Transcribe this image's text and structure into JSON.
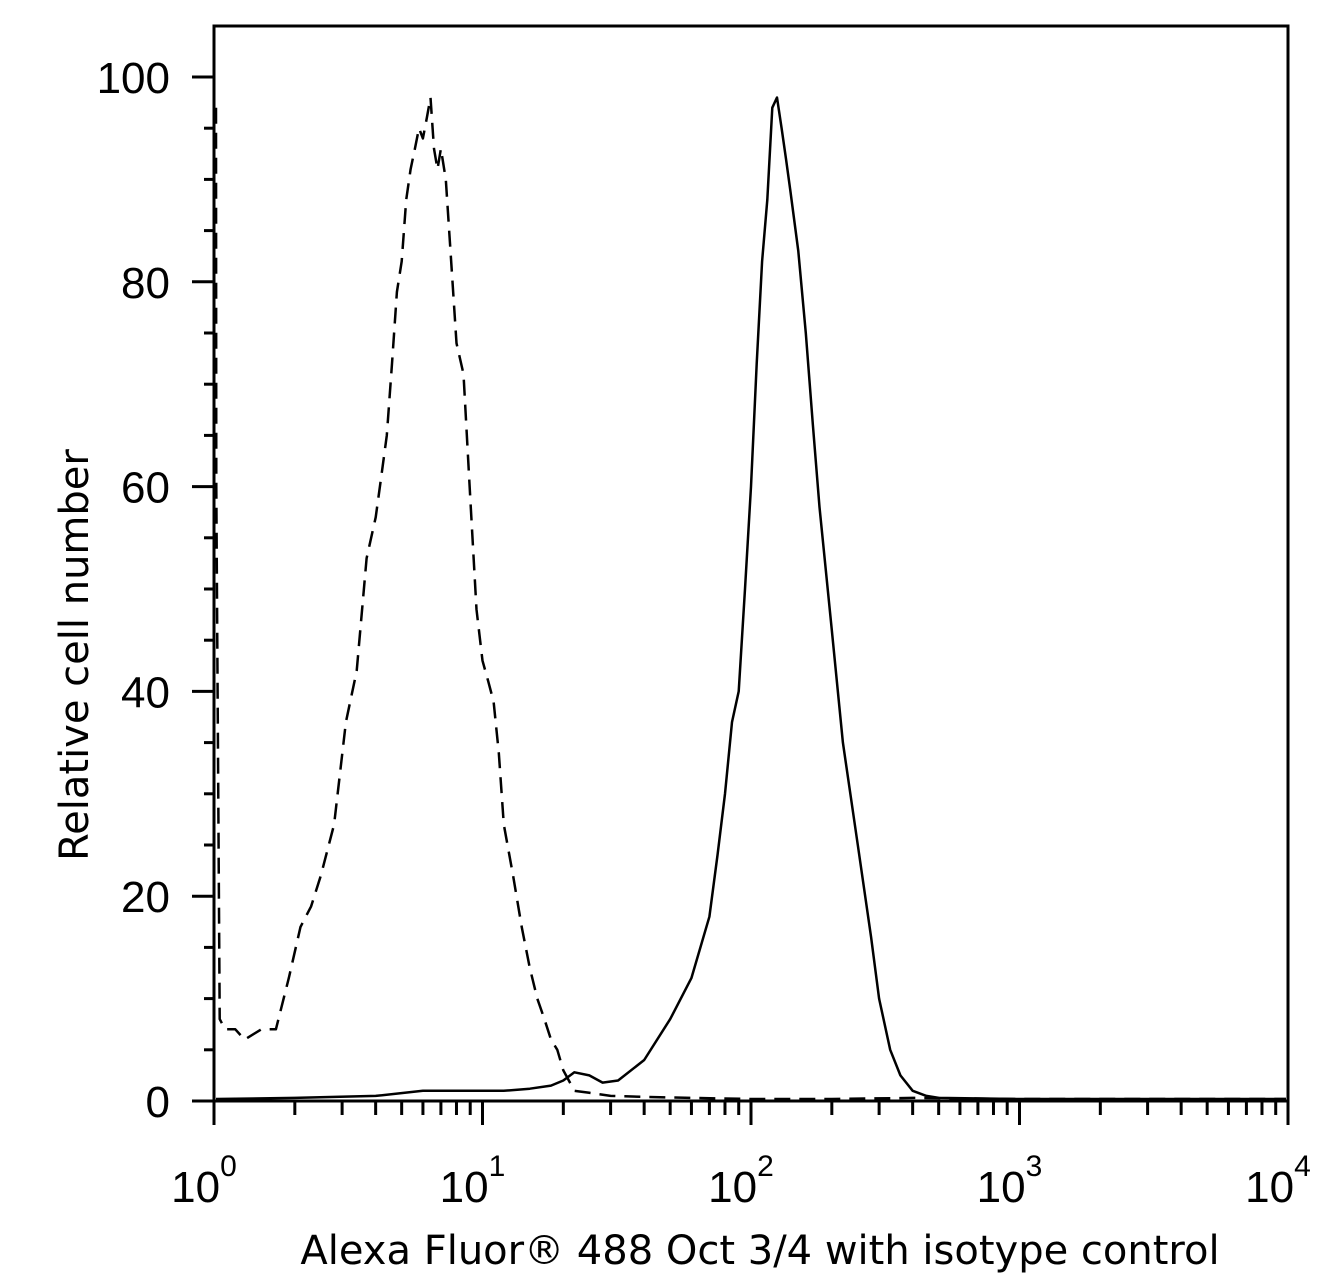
{
  "chart_data": {
    "type": "line",
    "title": "",
    "xlabel": "Alexa Fluor® 488 Oct 3/4 with isotype control",
    "ylabel": "Relative cell number",
    "xscale": "log",
    "xlim": [
      1,
      10000
    ],
    "ylim": [
      0,
      100
    ],
    "x_ticks": [
      {
        "value": 1,
        "base": "10",
        "exp": "0"
      },
      {
        "value": 10,
        "base": "10",
        "exp": "1"
      },
      {
        "value": 100,
        "base": "10",
        "exp": "2"
      },
      {
        "value": 1000,
        "base": "10",
        "exp": "3"
      },
      {
        "value": 10000,
        "base": "10",
        "exp": "4"
      }
    ],
    "y_ticks": [
      0,
      20,
      40,
      60,
      80,
      100
    ],
    "grid": false,
    "series": [
      {
        "style": "dashed",
        "color": "#000000",
        "x": [
          1.0,
          1.02,
          1.05,
          1.1,
          1.2,
          1.3,
          1.5,
          1.7,
          1.9,
          2.1,
          2.3,
          2.5,
          2.8,
          3.1,
          3.4,
          3.7,
          4.0,
          4.2,
          4.4,
          4.6,
          4.8,
          5.0,
          5.2,
          5.4,
          5.6,
          5.8,
          6.0,
          6.2,
          6.4,
          6.6,
          6.8,
          7.0,
          7.3,
          7.6,
          8.0,
          8.5,
          9.0,
          9.5,
          10.0,
          10.5,
          11.0,
          11.5,
          12.0,
          13.0,
          14.0,
          15.0,
          16.0,
          17.0,
          18.0,
          19.0,
          20.0,
          22.0,
          25.0,
          30.0,
          40.0,
          60.0,
          100.0,
          200.0,
          400.0,
          1000.0,
          10000.0
        ],
        "y": [
          97,
          60,
          8,
          7,
          7,
          6,
          7,
          7,
          12,
          17,
          19,
          22,
          27,
          37,
          42,
          53,
          57,
          61,
          65,
          72,
          79,
          82,
          88,
          91,
          93,
          95,
          94,
          96,
          98,
          93,
          91,
          93,
          90,
          83,
          74,
          71,
          59,
          48,
          43,
          41,
          39,
          34,
          27,
          22,
          17,
          13,
          10,
          8,
          6,
          5,
          3,
          1,
          0.8,
          0.5,
          0.4,
          0.3,
          0.2,
          0.2,
          0.3,
          0.2,
          0.2
        ]
      },
      {
        "style": "solid",
        "color": "#000000",
        "x": [
          1.0,
          2.0,
          4.0,
          6.0,
          8.0,
          10.0,
          12.0,
          15.0,
          18.0,
          20.0,
          22.0,
          25.0,
          28.0,
          32.0,
          40.0,
          50.0,
          60.0,
          70.0,
          75.0,
          80.0,
          85.0,
          90.0,
          95.0,
          100.0,
          105.0,
          110.0,
          115.0,
          120.0,
          125.0,
          130.0,
          135.0,
          140.0,
          150.0,
          160.0,
          170.0,
          180.0,
          200.0,
          220.0,
          250.0,
          280.0,
          300.0,
          330.0,
          360.0,
          400.0,
          450.0,
          500.0,
          1000.0,
          10000.0
        ],
        "y": [
          0.2,
          0.3,
          0.5,
          1.0,
          1.0,
          1.0,
          1.0,
          1.2,
          1.5,
          2.0,
          2.8,
          2.5,
          1.8,
          2.0,
          4.0,
          8.0,
          12.0,
          18.0,
          24.0,
          30.0,
          37.0,
          40.0,
          50.0,
          60.0,
          72.0,
          82.0,
          88.0,
          97.0,
          98.0,
          95.0,
          92.0,
          89.0,
          83.0,
          75.0,
          66.0,
          58.0,
          46.0,
          35.0,
          25.0,
          16.0,
          10.0,
          5.0,
          2.5,
          1.0,
          0.5,
          0.3,
          0.2,
          0.2
        ]
      }
    ]
  }
}
